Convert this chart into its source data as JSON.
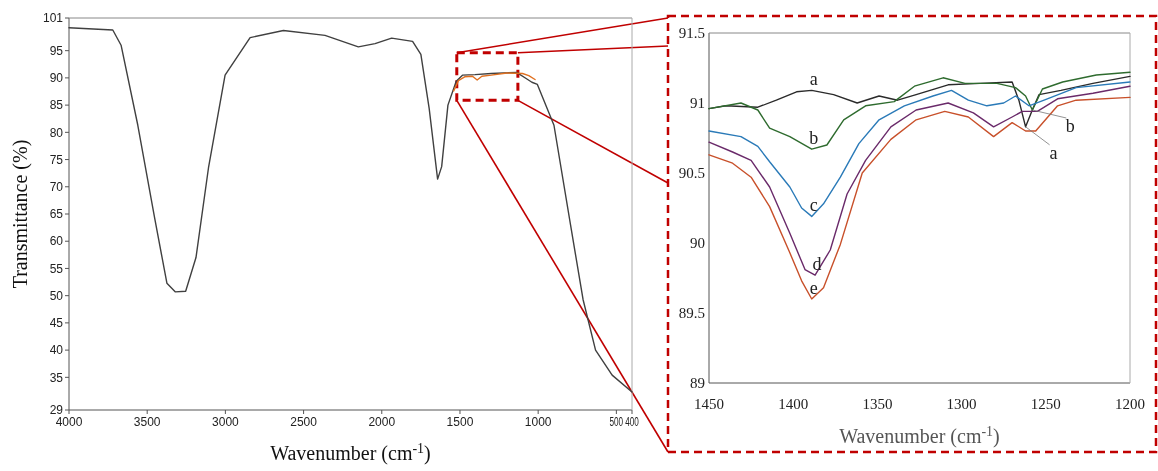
{
  "chart_data": [
    {
      "type": "line",
      "xlabel": "Wavenumber (cm$^{-1}$)",
      "ylabel": "Transmittance (%)",
      "xlim": [
        4000,
        400
      ],
      "ylim": [
        29,
        101
      ],
      "xticks": [
        4000,
        3500,
        3000,
        2500,
        2000,
        1500,
        1000,
        500,
        400
      ],
      "yticks": [
        29,
        35,
        40,
        45,
        50,
        55,
        60,
        65,
        70,
        75,
        80,
        85,
        90,
        95,
        101
      ],
      "series": [
        {
          "color": "#404040",
          "x": [
            4000,
            3720,
            3667,
            3560,
            3454,
            3374,
            3321,
            3254,
            3188,
            3108,
            3002,
            2842,
            2629,
            2363,
            2150,
            2043,
            1937,
            1803,
            1750,
            1697,
            1643,
            1617,
            1577,
            1524,
            1484,
            1404,
            1300,
            1138,
            1072,
            1040,
            1005,
            899,
            793,
            713,
            633,
            527,
            400
          ],
          "values": [
            99.2,
            98.8,
            96,
            81.3,
            64.5,
            52.3,
            50.7,
            50.8,
            57,
            73.5,
            90.5,
            97.4,
            98.7,
            97.8,
            95.7,
            96.3,
            97.3,
            96.7,
            94.3,
            84.4,
            71.4,
            73.7,
            85,
            89.4,
            90.5,
            90.6,
            90.8,
            91,
            89.8,
            89.2,
            88.8,
            81.3,
            63,
            49.3,
            40,
            35.4,
            32.3
          ]
        },
        {
          "color": "#e07020",
          "x": [
            1540,
            1510,
            1470,
            1420,
            1390,
            1360,
            1300,
            1200,
            1100,
            1060,
            1020
          ],
          "values": [
            87.6,
            89.5,
            90.2,
            90.3,
            89.6,
            90.3,
            90.5,
            90.9,
            90.8,
            90.4,
            89.7
          ]
        }
      ]
    },
    {
      "type": "line",
      "xlabel": "Wavenumber (cm$^{-1}$)",
      "xlim": [
        1450,
        1200
      ],
      "ylim": [
        89,
        91.5
      ],
      "xticks": [
        1450,
        1400,
        1350,
        1300,
        1250,
        1200
      ],
      "yticks": [
        89,
        89.5,
        90,
        90.5,
        91,
        91.5
      ],
      "series": [
        {
          "name": "a",
          "color": "#2b2b2b",
          "x": [
            1450,
            1440,
            1421,
            1410,
            1398,
            1389,
            1376,
            1362,
            1349,
            1338,
            1327,
            1308,
            1289,
            1270,
            1266,
            1262,
            1258,
            1254,
            1241,
            1222,
            1200
          ],
          "values": [
            90.96,
            90.98,
            90.97,
            91.02,
            91.08,
            91.09,
            91.06,
            91.0,
            91.05,
            91.02,
            91.06,
            91.13,
            91.14,
            91.15,
            91.02,
            90.83,
            90.95,
            91.06,
            91.09,
            91.14,
            91.19
          ]
        },
        {
          "name": "b",
          "color": "#2e6b2e",
          "x": [
            1450,
            1431,
            1421,
            1414,
            1402,
            1389,
            1380,
            1370,
            1357,
            1340,
            1328,
            1311,
            1298,
            1279,
            1268,
            1262,
            1258,
            1252,
            1240,
            1220,
            1200
          ],
          "values": [
            90.96,
            91.0,
            90.95,
            90.82,
            90.76,
            90.67,
            90.7,
            90.88,
            90.98,
            91.01,
            91.12,
            91.18,
            91.14,
            91.14,
            91.11,
            91.05,
            90.95,
            91.1,
            91.15,
            91.2,
            91.22
          ]
        },
        {
          "name": "c",
          "color": "#2a7ab8",
          "x": [
            1450,
            1431,
            1421,
            1414,
            1402,
            1395,
            1389,
            1382,
            1372,
            1361,
            1349,
            1334,
            1317,
            1306,
            1296,
            1285,
            1275,
            1268,
            1260,
            1251,
            1232,
            1200
          ],
          "values": [
            90.8,
            90.76,
            90.69,
            90.58,
            90.4,
            90.25,
            90.19,
            90.28,
            90.47,
            90.71,
            90.88,
            90.98,
            91.05,
            91.09,
            91.02,
            90.98,
            91.0,
            91.05,
            90.98,
            91.02,
            91.11,
            91.15
          ]
        },
        {
          "name": "d",
          "color": "#6a2a6a",
          "x": [
            1450,
            1436,
            1425,
            1414,
            1402,
            1393,
            1387,
            1378,
            1368,
            1357,
            1342,
            1327,
            1308,
            1293,
            1281,
            1270,
            1264,
            1255,
            1243,
            1222,
            1200
          ],
          "values": [
            90.72,
            90.65,
            90.59,
            90.4,
            90.07,
            89.81,
            89.77,
            89.95,
            90.35,
            90.59,
            90.83,
            90.95,
            91.0,
            90.93,
            90.83,
            90.9,
            90.94,
            90.94,
            91.03,
            91.07,
            91.12
          ]
        },
        {
          "name": "e",
          "color": "#c8502a",
          "x": [
            1450,
            1436,
            1425,
            1414,
            1402,
            1395,
            1389,
            1382,
            1372,
            1359,
            1342,
            1327,
            1310,
            1296,
            1281,
            1270,
            1262,
            1256,
            1243,
            1232,
            1200
          ],
          "values": [
            90.63,
            90.57,
            90.47,
            90.26,
            89.93,
            89.73,
            89.6,
            89.68,
            89.99,
            90.5,
            90.74,
            90.88,
            90.94,
            90.9,
            90.76,
            90.86,
            90.8,
            90.8,
            90.98,
            91.02,
            91.04
          ]
        }
      ],
      "annotations": [
        {
          "text": "a",
          "x": 1262,
          "y": 90.83
        },
        {
          "text": "b",
          "x": 1258,
          "y": 90.95
        }
      ]
    }
  ]
}
